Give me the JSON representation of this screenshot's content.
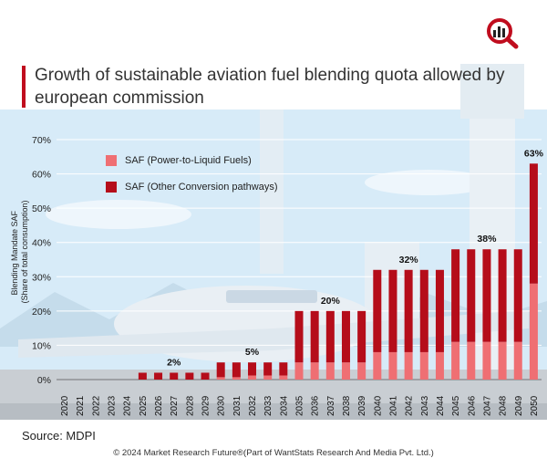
{
  "title": "Growth of sustainable aviation fuel blending quota allowed by european commission",
  "source": "Source: MDPI",
  "copyright": "© 2024 Market Research Future®(Part of WantStats Research And Media Pvt. Ltd.)",
  "colors": {
    "ptl": "#ef6f73",
    "other": "#b50d1a",
    "accent": "#c00d1e"
  },
  "chart_data": {
    "type": "bar",
    "stacked": true,
    "ylabel": "Blending Mandate SAF (Share of total consumption)",
    "ylim": [
      0,
      70
    ],
    "yticks": [
      "0%",
      "10%",
      "20%",
      "30%",
      "40%",
      "50%",
      "60%",
      "70%"
    ],
    "categories": [
      "2020",
      "2021",
      "2022",
      "2023",
      "2024",
      "2025",
      "2026",
      "2027",
      "2028",
      "2029",
      "2030",
      "2031",
      "2032",
      "2033",
      "2034",
      "2035",
      "2036",
      "2037",
      "2038",
      "2039",
      "2040",
      "2041",
      "2042",
      "2043",
      "2044",
      "2045",
      "2046",
      "2047",
      "2048",
      "2049",
      "2050"
    ],
    "series": [
      {
        "name": "SAF (Power-to-Liquid Fuels)",
        "values": [
          0,
          0,
          0,
          0,
          0,
          0,
          0,
          0,
          0,
          0,
          0.7,
          0.7,
          1.2,
          1.2,
          1.2,
          5,
          5,
          5,
          5,
          5,
          8,
          8,
          8,
          8,
          8,
          11,
          11,
          11,
          11,
          11,
          28
        ]
      },
      {
        "name": "SAF (Other Conversion pathways)",
        "values": [
          0,
          0,
          0,
          0,
          0,
          2,
          2,
          2,
          2,
          2,
          4.3,
          4.3,
          3.8,
          3.8,
          3.8,
          15,
          15,
          15,
          15,
          15,
          24,
          24,
          24,
          24,
          24,
          27,
          27,
          27,
          27,
          27,
          35
        ]
      }
    ],
    "annotations": [
      {
        "category": "2027",
        "label": "2%"
      },
      {
        "category": "2032",
        "label": "5%"
      },
      {
        "category": "2037",
        "label": "20%"
      },
      {
        "category": "2042",
        "label": "32%"
      },
      {
        "category": "2047",
        "label": "38%"
      },
      {
        "category": "2050",
        "label": "63%"
      }
    ]
  }
}
